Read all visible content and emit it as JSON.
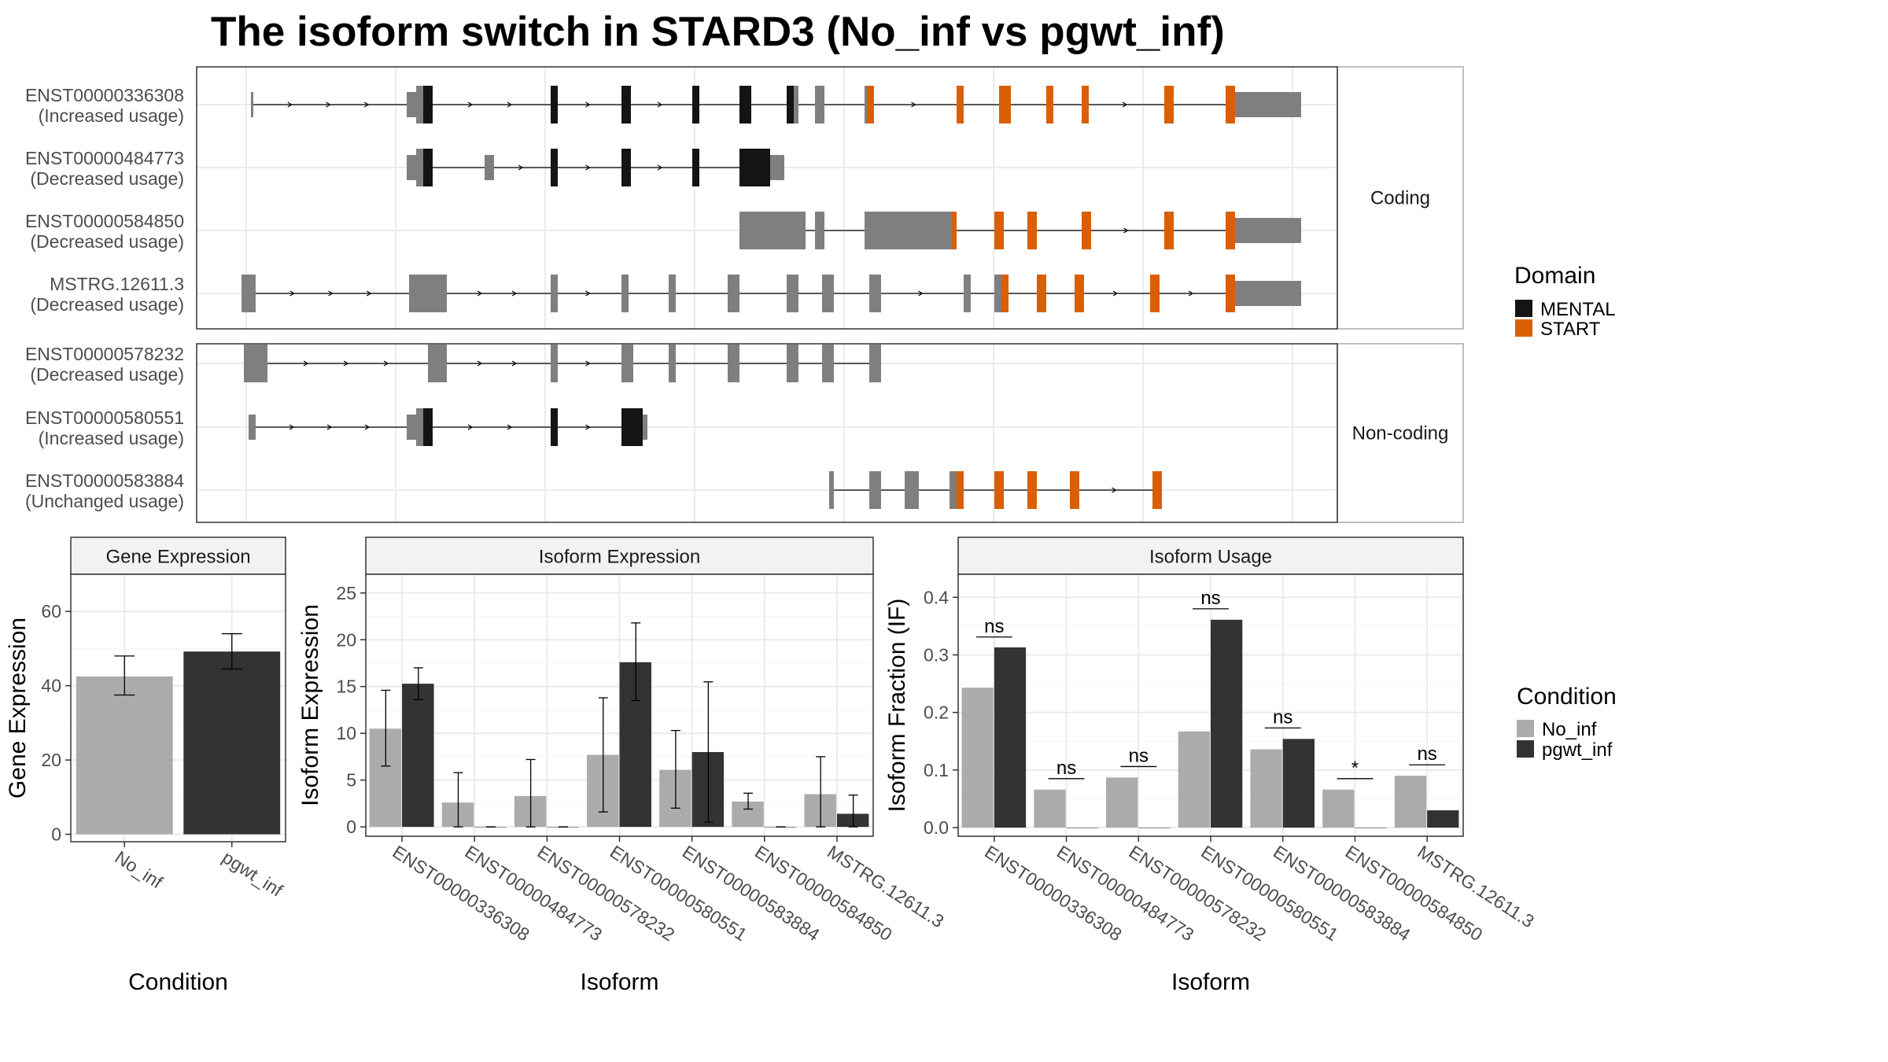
{
  "title": "The isoform switch in STARD3 (No_inf vs pgwt_inf)",
  "colors": {
    "mental": "#141414",
    "start": "#D95F02",
    "exon": "#7F7F7F",
    "no_inf": "#ABABAB",
    "pgwt_inf": "#333333",
    "grid": "#EBEBEB",
    "strip": "#F2F2F2"
  },
  "structure": {
    "groups": [
      {
        "label": "Coding",
        "isoforms": [
          {
            "id": "ENST00000336308",
            "usage": "(Increased usage)",
            "exons": [
              [
                2.3,
                2.4,
                "exon",
                "utr"
              ],
              [
                8.9,
                9.3,
                "exon",
                "utr"
              ],
              [
                9.3,
                9.6,
                "exon",
                "cds"
              ],
              [
                9.6,
                10.0,
                "mental",
                "cds"
              ],
              [
                15.0,
                15.3,
                "mental",
                "cds"
              ],
              [
                18.0,
                18.4,
                "mental",
                "cds"
              ],
              [
                21.0,
                21.3,
                "mental",
                "cds"
              ],
              [
                23.0,
                23.5,
                "mental",
                "cds"
              ],
              [
                25.0,
                25.3,
                "mental",
                "cds"
              ],
              [
                25.3,
                25.5,
                "exon",
                "cds"
              ],
              [
                26.2,
                26.6,
                "exon",
                "cds"
              ],
              [
                28.3,
                28.4,
                "exon",
                "cds"
              ],
              [
                28.4,
                28.7,
                "start",
                "cds"
              ],
              [
                32.2,
                32.5,
                "start",
                "cds"
              ],
              [
                34.0,
                34.5,
                "start",
                "cds"
              ],
              [
                36.0,
                36.3,
                "start",
                "cds"
              ],
              [
                37.5,
                37.8,
                "start",
                "cds"
              ],
              [
                41.0,
                41.4,
                "start",
                "cds"
              ],
              [
                43.6,
                44.0,
                "start",
                "cds"
              ],
              [
                44.0,
                46.8,
                "exon",
                "utr"
              ]
            ]
          },
          {
            "id": "ENST00000484773",
            "usage": "(Decreased usage)",
            "exons": [
              [
                12.2,
                12.6,
                "exon",
                "utr"
              ],
              [
                8.9,
                9.3,
                "exon",
                "utr"
              ],
              [
                9.3,
                9.6,
                "exon",
                "cds"
              ],
              [
                9.6,
                10.0,
                "mental",
                "cds"
              ],
              [
                15.0,
                15.3,
                "mental",
                "cds"
              ],
              [
                18.0,
                18.4,
                "mental",
                "cds"
              ],
              [
                21.0,
                21.3,
                "mental",
                "cds"
              ],
              [
                23.0,
                24.3,
                "mental",
                "cds"
              ],
              [
                24.3,
                24.9,
                "exon",
                "utr"
              ]
            ]
          },
          {
            "id": "ENST00000584850",
            "usage": "(Decreased usage)",
            "exons": [
              [
                23.0,
                25.8,
                "exon",
                "cds"
              ],
              [
                26.2,
                26.6,
                "exon",
                "cds"
              ],
              [
                28.3,
                32.0,
                "exon",
                "cds"
              ],
              [
                32.0,
                32.2,
                "start",
                "cds"
              ],
              [
                33.8,
                34.2,
                "start",
                "cds"
              ],
              [
                35.2,
                35.6,
                "start",
                "cds"
              ],
              [
                37.5,
                37.9,
                "start",
                "cds"
              ],
              [
                41.0,
                41.4,
                "start",
                "cds"
              ],
              [
                43.6,
                44.0,
                "start",
                "cds"
              ],
              [
                44.0,
                46.8,
                "exon",
                "utr"
              ]
            ]
          },
          {
            "id": "MSTRG.12611.3",
            "usage": "(Decreased usage)",
            "exons": [
              [
                1.9,
                2.5,
                "exon",
                "cds"
              ],
              [
                9.0,
                10.6,
                "exon",
                "cds"
              ],
              [
                15.0,
                15.3,
                "exon",
                "cds"
              ],
              [
                18.0,
                18.3,
                "exon",
                "cds"
              ],
              [
                20.0,
                20.3,
                "exon",
                "cds"
              ],
              [
                22.5,
                23.0,
                "exon",
                "cds"
              ],
              [
                25.0,
                25.5,
                "exon",
                "cds"
              ],
              [
                26.5,
                27.0,
                "exon",
                "cds"
              ],
              [
                28.5,
                29.0,
                "exon",
                "cds"
              ],
              [
                32.5,
                32.8,
                "exon",
                "cds"
              ],
              [
                33.8,
                34.1,
                "exon",
                "cds"
              ],
              [
                34.1,
                34.4,
                "start",
                "cds"
              ],
              [
                35.6,
                36.0,
                "start",
                "cds"
              ],
              [
                37.2,
                37.6,
                "start",
                "cds"
              ],
              [
                40.4,
                40.8,
                "start",
                "cds"
              ],
              [
                43.6,
                44.0,
                "start",
                "cds"
              ],
              [
                44.0,
                46.8,
                "exon",
                "utr"
              ]
            ]
          }
        ]
      },
      {
        "label": "Non-coding",
        "isoforms": [
          {
            "id": "ENST00000578232",
            "usage": "(Decreased usage)",
            "exons": [
              [
                2.0,
                3.0,
                "exon",
                "cds"
              ],
              [
                9.8,
                10.6,
                "exon",
                "cds"
              ],
              [
                15.0,
                15.3,
                "exon",
                "cds"
              ],
              [
                18.0,
                18.5,
                "exon",
                "cds"
              ],
              [
                20.0,
                20.3,
                "exon",
                "cds"
              ],
              [
                22.5,
                23.0,
                "exon",
                "cds"
              ],
              [
                25.0,
                25.5,
                "exon",
                "cds"
              ],
              [
                26.5,
                27.0,
                "exon",
                "cds"
              ],
              [
                28.5,
                29.0,
                "exon",
                "cds"
              ]
            ]
          },
          {
            "id": "ENST00000580551",
            "usage": "(Increased usage)",
            "exons": [
              [
                2.2,
                2.5,
                "exon",
                "utr"
              ],
              [
                8.9,
                9.3,
                "exon",
                "utr"
              ],
              [
                9.3,
                9.6,
                "exon",
                "cds"
              ],
              [
                9.6,
                10.0,
                "mental",
                "cds"
              ],
              [
                15.0,
                15.3,
                "mental",
                "cds"
              ],
              [
                18.0,
                18.4,
                "mental",
                "cds"
              ],
              [
                18.4,
                18.9,
                "mental",
                "cds"
              ],
              [
                18.9,
                19.1,
                "exon",
                "utr"
              ]
            ]
          },
          {
            "id": "ENST00000583884",
            "usage": "(Unchanged usage)",
            "exons": [
              [
                26.8,
                27.0,
                "exon",
                "cds"
              ],
              [
                28.5,
                29.0,
                "exon",
                "cds"
              ],
              [
                30.0,
                30.6,
                "exon",
                "cds"
              ],
              [
                31.9,
                32.2,
                "exon",
                "cds"
              ],
              [
                32.2,
                32.5,
                "start",
                "cds"
              ],
              [
                33.8,
                34.2,
                "start",
                "cds"
              ],
              [
                35.2,
                35.6,
                "start",
                "cds"
              ],
              [
                37.0,
                37.4,
                "start",
                "cds"
              ],
              [
                40.5,
                40.9,
                "start",
                "cds"
              ]
            ]
          }
        ]
      }
    ],
    "domain_legend": {
      "title": "Domain",
      "entries": [
        {
          "label": "MENTAL",
          "color": "#141414"
        },
        {
          "label": "START",
          "color": "#D95F02"
        }
      ]
    }
  },
  "chart_data": [
    {
      "type": "bar",
      "panel": "Gene Expression",
      "categories": [
        "No_inf",
        "pgwt_inf"
      ],
      "values": [
        42.5,
        49.2
      ],
      "errors": [
        [
          37.5,
          48.0
        ],
        [
          44.5,
          54.0
        ]
      ],
      "xlabel": "Condition",
      "ylabel": "Gene Expression",
      "ylim": [
        -2,
        70
      ],
      "yticks": [
        0,
        20,
        40,
        60
      ]
    },
    {
      "type": "bar",
      "panel": "Isoform Expression",
      "categories": [
        "ENST00000336308",
        "ENST00000484773",
        "ENST00000578232",
        "ENST00000580551",
        "ENST00000583884",
        "ENST00000584850",
        "MSTRG.12611.3"
      ],
      "series": [
        {
          "name": "No_inf",
          "values": [
            10.5,
            2.6,
            3.3,
            7.7,
            6.1,
            2.7,
            3.5
          ],
          "errors": [
            [
              6.5,
              14.6
            ],
            [
              0,
              5.8
            ],
            [
              0,
              7.2
            ],
            [
              1.6,
              13.8
            ],
            [
              2.0,
              10.3
            ],
            [
              1.9,
              3.6
            ],
            [
              0,
              7.5
            ]
          ]
        },
        {
          "name": "pgwt_inf",
          "values": [
            15.3,
            0,
            0,
            17.6,
            8.0,
            0,
            1.4
          ],
          "errors": [
            [
              13.6,
              17.0
            ],
            [
              0,
              0
            ],
            [
              0,
              0
            ],
            [
              13.5,
              21.8
            ],
            [
              0.5,
              15.5
            ],
            [
              0,
              0
            ],
            [
              0,
              3.4
            ]
          ]
        }
      ],
      "xlabel": "Isoform",
      "ylabel": "Isoform Expression",
      "ylim": [
        -1,
        27
      ],
      "yticks": [
        0,
        5,
        10,
        15,
        20,
        25
      ]
    },
    {
      "type": "bar",
      "panel": "Isoform Usage",
      "categories": [
        "ENST00000336308",
        "ENST00000484773",
        "ENST00000578232",
        "ENST00000580551",
        "ENST00000583884",
        "ENST00000584850",
        "MSTRG.12611.3"
      ],
      "series": [
        {
          "name": "No_inf",
          "values": [
            0.243,
            0.066,
            0.087,
            0.167,
            0.136,
            0.066,
            0.09
          ]
        },
        {
          "name": "pgwt_inf",
          "values": [
            0.313,
            0,
            0,
            0.361,
            0.154,
            0,
            0.03
          ]
        }
      ],
      "significance": [
        "ns",
        "ns",
        "ns",
        "ns",
        "ns",
        "*",
        "ns"
      ],
      "significance_y": [
        0.331,
        0.085,
        0.106,
        0.38,
        0.173,
        0.085,
        0.109
      ],
      "xlabel": "Isoform",
      "ylabel": "Isoform Fraction (IF)",
      "ylim": [
        -0.015,
        0.44
      ],
      "yticks": [
        "0.0",
        "0.1",
        "0.2",
        "0.3",
        "0.4"
      ]
    }
  ],
  "condition_legend": {
    "title": "Condition",
    "entries": [
      {
        "label": "No_inf",
        "color": "#ABABAB"
      },
      {
        "label": "pgwt_inf",
        "color": "#333333"
      }
    ]
  }
}
